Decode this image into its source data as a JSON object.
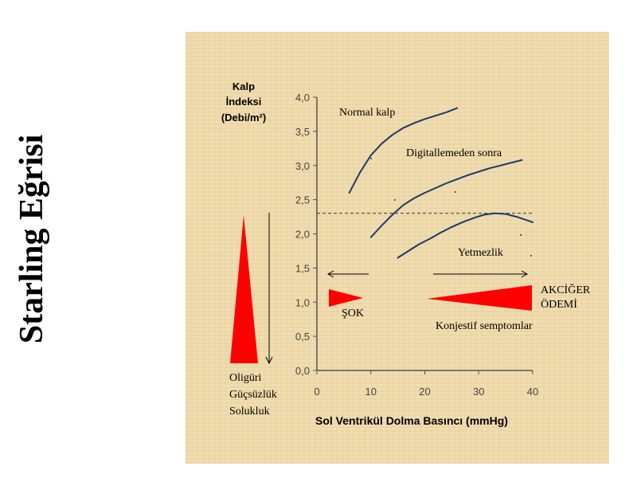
{
  "slide_title": "Starling Eğrisi",
  "chart_data": {
    "type": "line",
    "ylabel_lines": [
      "Kalp",
      "İndeksi",
      "(Debi/m²)"
    ],
    "xlabel": "Sol Ventrikül Dolma Basıncı (mmHg)",
    "xlim": [
      0,
      40
    ],
    "ylim": [
      0,
      4.0
    ],
    "xticks": [
      "0",
      "10",
      "20",
      "30",
      "40"
    ],
    "yticks": [
      "0,0",
      "0,5",
      "1,0",
      "1,5",
      "2,0",
      "2,5",
      "3,0",
      "3,5",
      "4,0"
    ],
    "reference_line_y": 2.3,
    "series": [
      {
        "name": "Normal kalp",
        "x": [
          6,
          8,
          10,
          12,
          14,
          16,
          18,
          20,
          22,
          24,
          26
        ],
        "y": [
          2.6,
          2.9,
          3.15,
          3.32,
          3.45,
          3.55,
          3.62,
          3.68,
          3.73,
          3.78,
          3.84
        ]
      },
      {
        "name": "Digitallemeden sonra",
        "x": [
          10,
          12,
          14,
          16,
          18,
          20,
          22,
          24,
          26,
          28,
          30,
          32,
          34,
          36,
          38
        ],
        "y": [
          1.95,
          2.12,
          2.28,
          2.42,
          2.52,
          2.6,
          2.67,
          2.74,
          2.8,
          2.86,
          2.91,
          2.96,
          3.0,
          3.04,
          3.08
        ]
      },
      {
        "name": "Yetmezlik",
        "x": [
          15,
          17,
          19,
          21,
          23,
          25,
          27,
          29,
          31,
          33,
          35,
          37,
          40
        ],
        "y": [
          1.65,
          1.75,
          1.85,
          1.93,
          2.02,
          2.1,
          2.17,
          2.23,
          2.28,
          2.3,
          2.29,
          2.25,
          2.17
        ]
      }
    ],
    "annotations": {
      "sok": "ŞOK",
      "akciger_line1": "AKCİĞER",
      "akciger_line2": "ÖDEMİ",
      "konjestif": "Konjestif semptomlar",
      "symptoms": [
        "Oligüri",
        "Güçsüzlük",
        "Solukluk"
      ]
    },
    "colors": {
      "curve": "#1b3a6b",
      "triangle": "#ff0000",
      "axis": "#555555"
    }
  }
}
